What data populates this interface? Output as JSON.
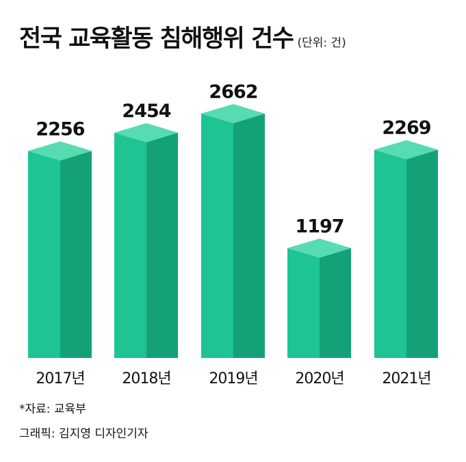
{
  "title": "전국 교육활동 침해행위 건수",
  "unit_label": "(단위: 건)",
  "source": "*자료: 교육부",
  "credit": "그래픽: 김지영 디자인기자",
  "colors": {
    "bar_front": "#1ec493",
    "bar_side": "#14a178",
    "bar_top": "#56dcb0"
  },
  "chart_data": {
    "type": "bar",
    "title": "전국 교육활동 침해행위 건수",
    "unit": "건",
    "categories": [
      "2017년",
      "2018년",
      "2019년",
      "2020년",
      "2021년"
    ],
    "values": [
      2256,
      2454,
      2662,
      1197,
      2269
    ],
    "data_labels": [
      "2256",
      "2454",
      "2662",
      "1197",
      "2269"
    ],
    "ylim": [
      0,
      2662
    ],
    "grid": false,
    "legend": "none"
  }
}
